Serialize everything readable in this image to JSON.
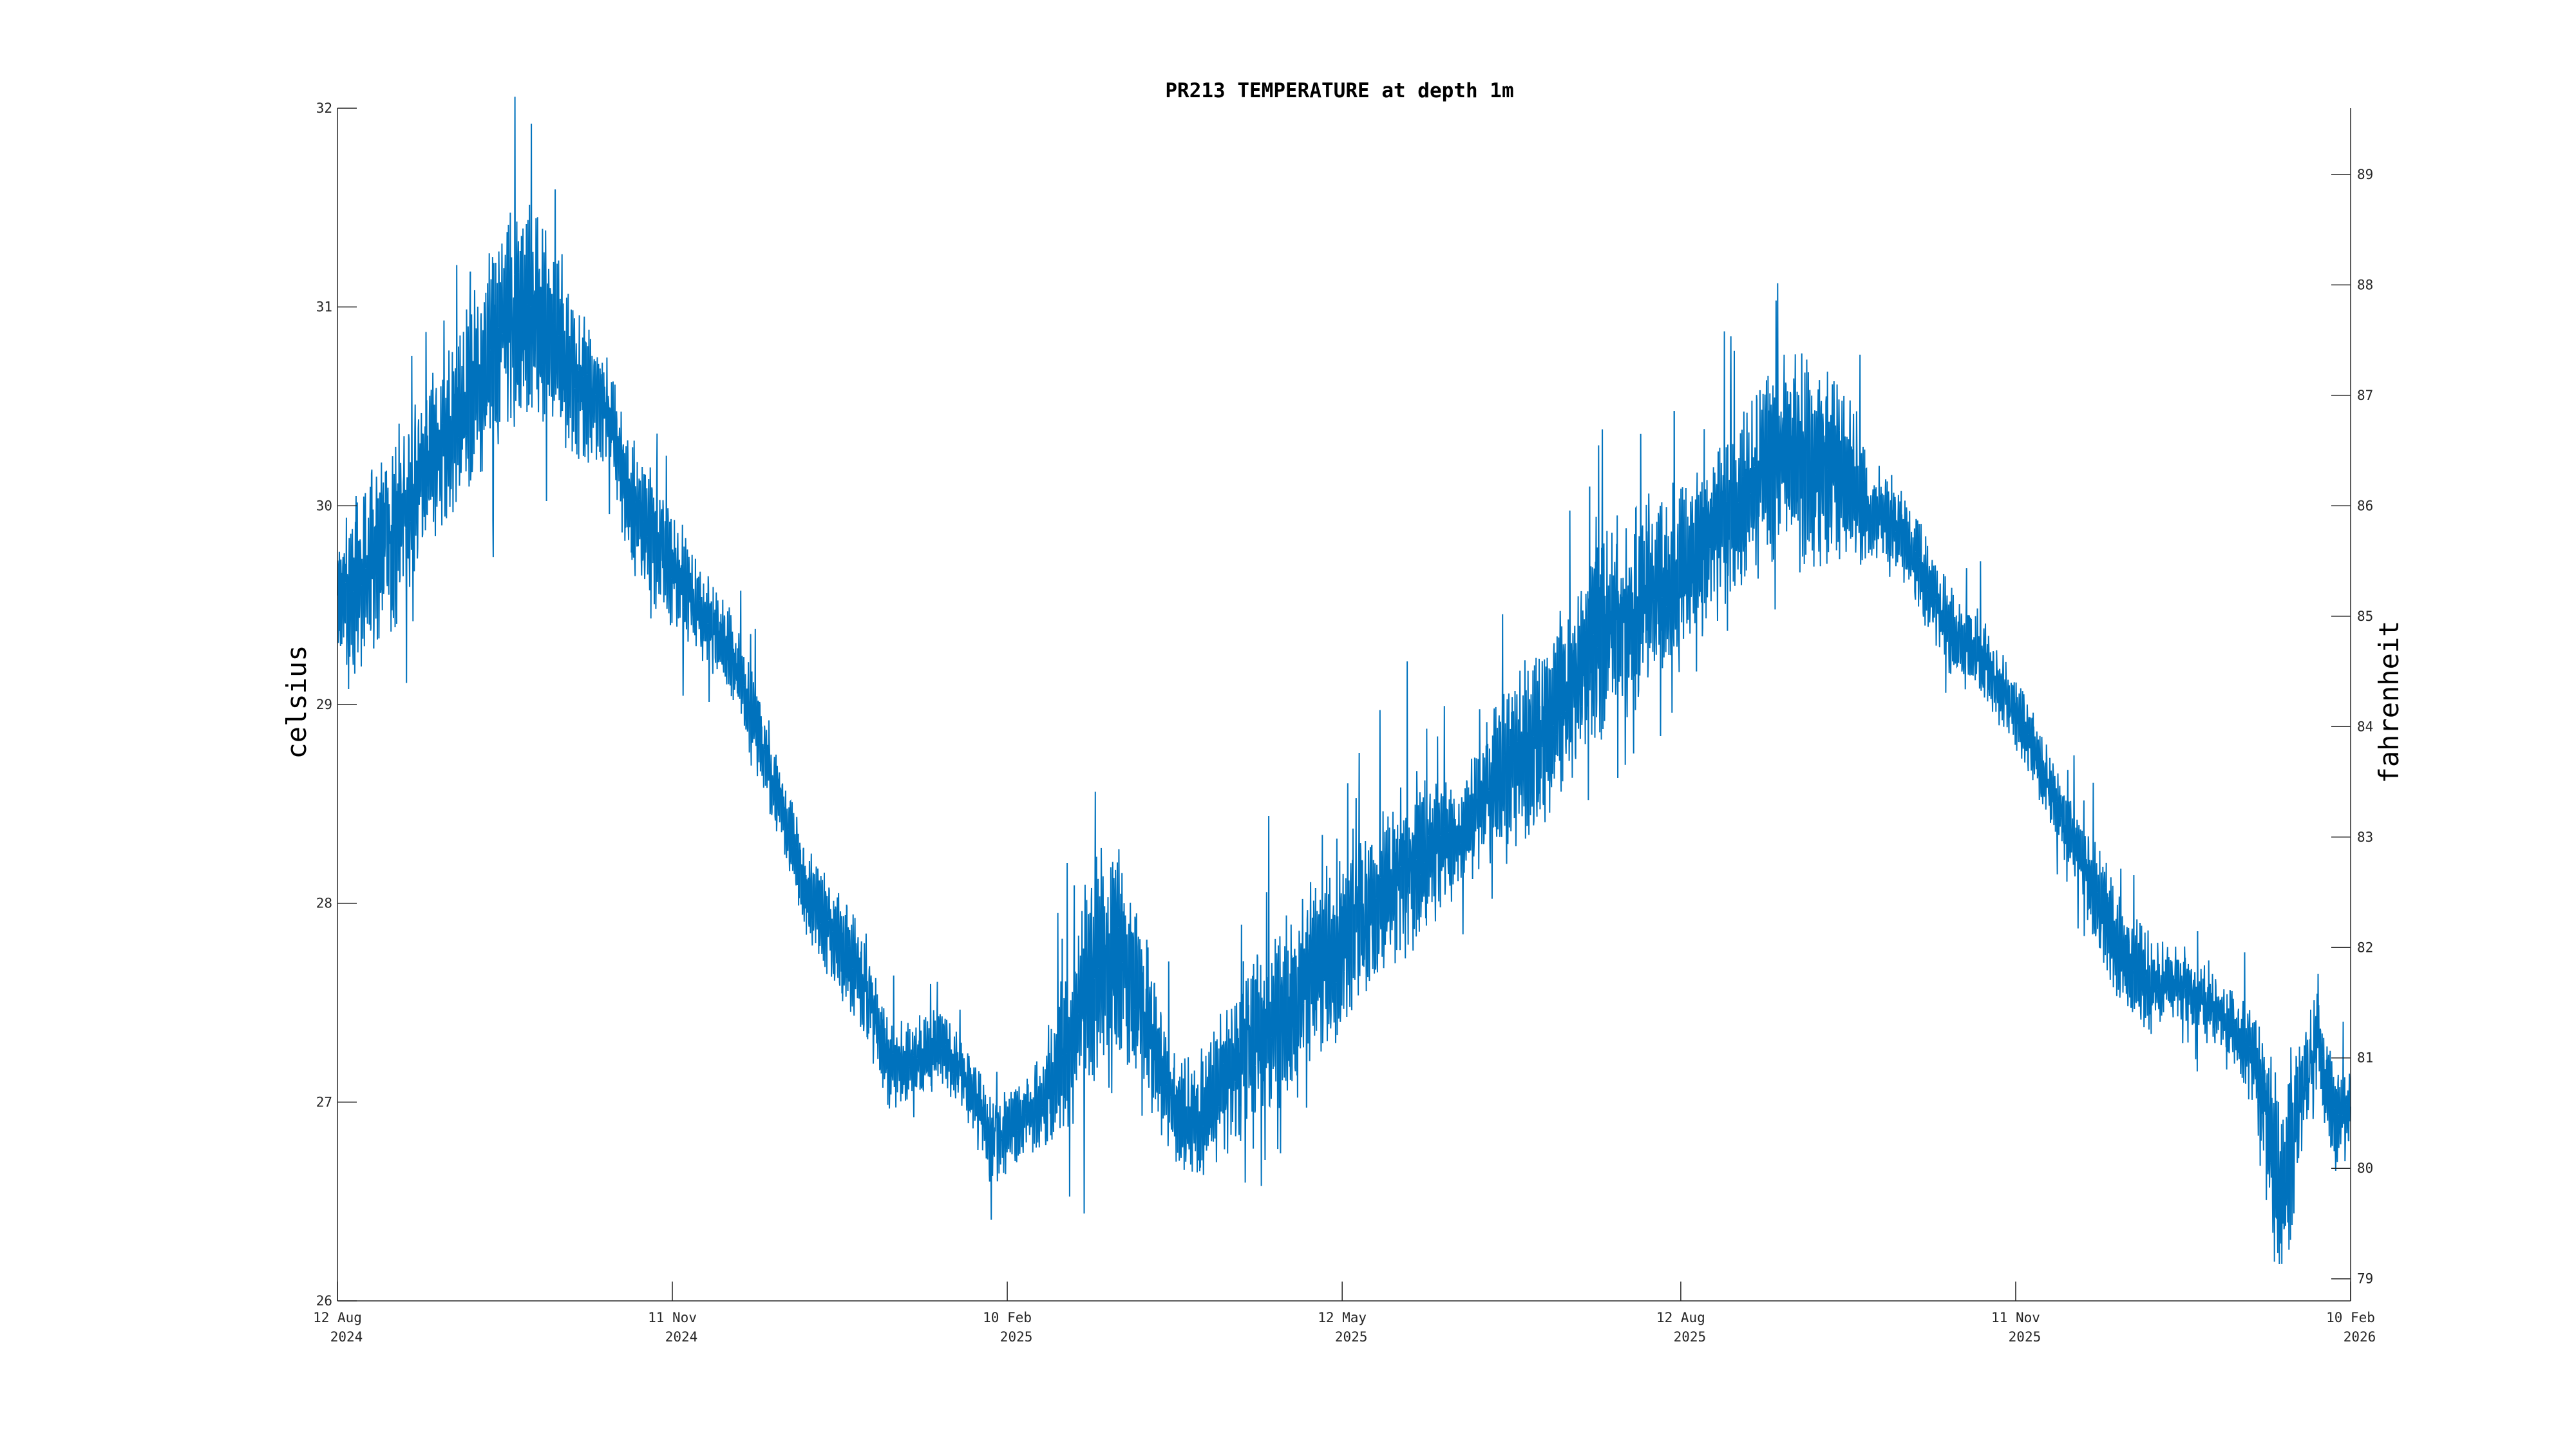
{
  "chart_data": {
    "type": "line",
    "title": "PR213 TEMPERATURE at depth 1m",
    "ylabel": "celsius",
    "y2label": "fahrenheit",
    "xlabel": "",
    "grid": false,
    "legend": "none",
    "color": "#0072BD",
    "xlim": [
      "2024-08-12",
      "2026-02-10"
    ],
    "ylim": [
      26,
      32
    ],
    "y2lim": [
      78.8,
      89.6
    ],
    "x_ticks": [
      {
        "date": "2024-08-12",
        "line1": "12 Aug",
        "line2": "2024"
      },
      {
        "date": "2024-11-11",
        "line1": "11 Nov",
        "line2": "2024"
      },
      {
        "date": "2025-02-10",
        "line1": "10 Feb",
        "line2": "2025"
      },
      {
        "date": "2025-05-12",
        "line1": "12 May",
        "line2": "2025"
      },
      {
        "date": "2025-08-12",
        "line1": "12 Aug",
        "line2": "2025"
      },
      {
        "date": "2025-11-11",
        "line1": "11 Nov",
        "line2": "2025"
      },
      {
        "date": "2026-02-10",
        "line1": "10 Feb",
        "line2": "2026"
      }
    ],
    "y_ticks": [
      "26",
      "27",
      "28",
      "29",
      "30",
      "31",
      "32"
    ],
    "y2_ticks": [
      "79",
      "80",
      "81",
      "82",
      "83",
      "84",
      "85",
      "86",
      "87",
      "88",
      "89"
    ],
    "series": [
      {
        "x": [
          "2024-08-12",
          "2024-08-17",
          "2024-08-24",
          "2024-08-31",
          "2024-09-05",
          "2024-09-12",
          "2024-09-19",
          "2024-09-26",
          "2024-10-03",
          "2024-10-10",
          "2024-10-17",
          "2024-10-24",
          "2024-10-31",
          "2024-11-07",
          "2024-11-14",
          "2024-11-21",
          "2024-11-28",
          "2024-12-05",
          "2024-12-12",
          "2024-12-19",
          "2024-12-26",
          "2025-01-02",
          "2025-01-09",
          "2025-01-16",
          "2025-01-23",
          "2025-01-30",
          "2025-02-06",
          "2025-02-13",
          "2025-02-20",
          "2025-02-27",
          "2025-03-06",
          "2025-03-13",
          "2025-03-20",
          "2025-03-27",
          "2025-04-03",
          "2025-04-10",
          "2025-04-17",
          "2025-04-24",
          "2025-05-01",
          "2025-05-08",
          "2025-05-15",
          "2025-05-22",
          "2025-05-29",
          "2025-06-05",
          "2025-06-12",
          "2025-06-19",
          "2025-06-26",
          "2025-07-03",
          "2025-07-10",
          "2025-07-17",
          "2025-07-24",
          "2025-07-31",
          "2025-08-07",
          "2025-08-14",
          "2025-08-21",
          "2025-08-28",
          "2025-09-04",
          "2025-09-11",
          "2025-09-18",
          "2025-09-25",
          "2025-10-02",
          "2025-10-09",
          "2025-10-16",
          "2025-10-23",
          "2025-10-30",
          "2025-11-06",
          "2025-11-13",
          "2025-11-20",
          "2025-11-27",
          "2025-12-04",
          "2025-12-11",
          "2025-12-18",
          "2025-12-25",
          "2026-01-01",
          "2026-01-08",
          "2026-01-15",
          "2026-01-22",
          "2026-01-27",
          "2026-02-01",
          "2026-02-06",
          "2026-02-10"
        ],
        "y": [
          29.5,
          29.6,
          29.8,
          30.0,
          30.2,
          30.4,
          30.6,
          30.9,
          31.0,
          30.8,
          30.6,
          30.5,
          30.0,
          29.8,
          29.6,
          29.4,
          29.2,
          28.8,
          28.4,
          28.0,
          27.8,
          27.6,
          27.2,
          27.2,
          27.3,
          27.1,
          26.8,
          26.9,
          27.0,
          27.3,
          27.7,
          27.8,
          27.4,
          27.0,
          26.9,
          27.1,
          27.3,
          27.4,
          27.6,
          27.7,
          27.9,
          28.0,
          28.2,
          28.3,
          28.3,
          28.5,
          28.7,
          28.8,
          29.0,
          29.2,
          29.4,
          29.5,
          29.6,
          29.7,
          29.9,
          30.0,
          30.2,
          30.3,
          30.2,
          30.2,
          30.0,
          29.9,
          29.7,
          29.4,
          29.3,
          29.1,
          28.9,
          28.6,
          28.3,
          28.0,
          27.7,
          27.6,
          27.6,
          27.5,
          27.4,
          27.2,
          26.5,
          27.0,
          27.3,
          26.9,
          27.0
        ],
        "amplitude": [
          0.35,
          0.45,
          0.55,
          0.5,
          0.45,
          0.45,
          0.55,
          0.6,
          0.55,
          0.5,
          0.4,
          0.3,
          0.35,
          0.35,
          0.3,
          0.25,
          0.25,
          0.25,
          0.2,
          0.25,
          0.3,
          0.3,
          0.25,
          0.2,
          0.2,
          0.2,
          0.25,
          0.2,
          0.25,
          0.5,
          0.6,
          0.55,
          0.4,
          0.3,
          0.3,
          0.4,
          0.45,
          0.5,
          0.5,
          0.5,
          0.45,
          0.45,
          0.45,
          0.45,
          0.3,
          0.35,
          0.45,
          0.5,
          0.5,
          0.5,
          0.55,
          0.55,
          0.5,
          0.45,
          0.45,
          0.45,
          0.5,
          0.55,
          0.55,
          0.5,
          0.3,
          0.2,
          0.25,
          0.25,
          0.25,
          0.2,
          0.2,
          0.2,
          0.2,
          0.3,
          0.3,
          0.25,
          0.2,
          0.2,
          0.2,
          0.25,
          0.6,
          0.4,
          0.3,
          0.25,
          0.2
        ]
      }
    ]
  }
}
